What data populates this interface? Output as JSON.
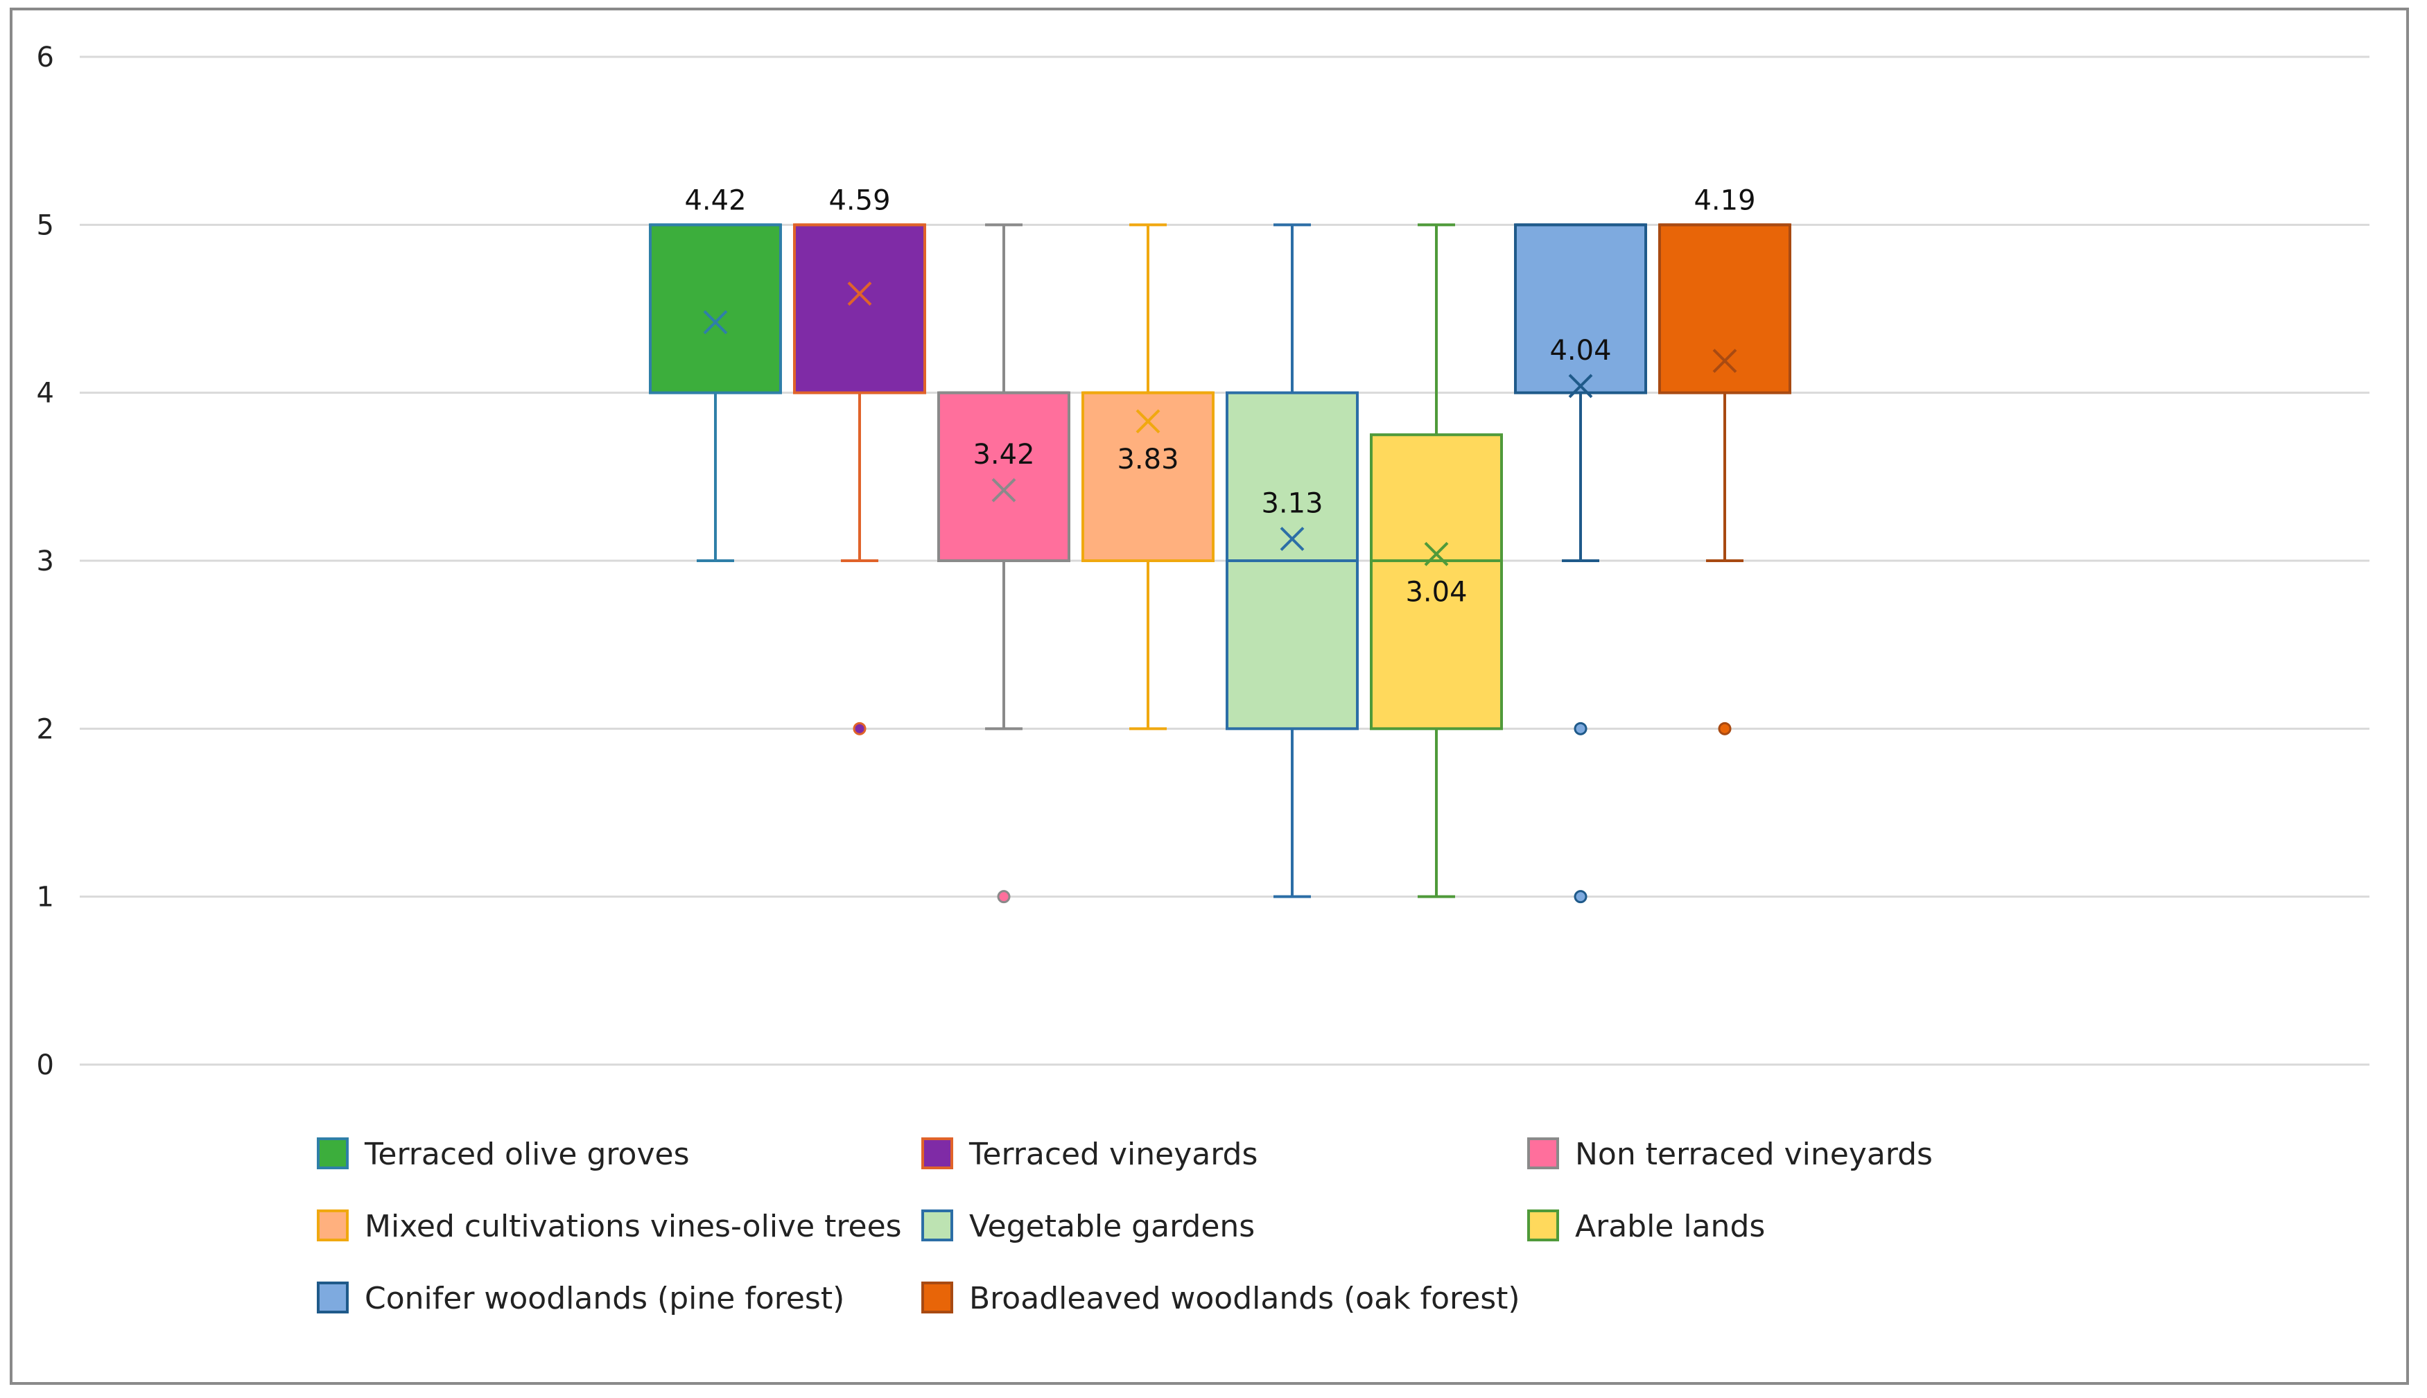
{
  "chart_data": {
    "type": "boxplot",
    "title": "",
    "xlabel": "",
    "ylabel": "",
    "ylim": [
      0,
      6
    ],
    "yticks": [
      "0",
      "1",
      "2",
      "3",
      "4",
      "5",
      "6"
    ],
    "grid": true,
    "legend_position": "bottom",
    "series": [
      {
        "name": "Terraced olive groves",
        "fill": "#3cae3c",
        "stroke": "#2f7fa8",
        "min": 3,
        "q1": 4,
        "median": 5,
        "q3": 5,
        "max": 5,
        "mean": 4.42,
        "mean_label": "4.42",
        "label_pos": "top",
        "outliers": []
      },
      {
        "name": "Terraced vineyards",
        "fill": "#7f2ba6",
        "stroke": "#e0632a",
        "min": 3,
        "q1": 4,
        "median": 5,
        "q3": 5,
        "max": 5,
        "mean": 4.59,
        "mean_label": "4.59",
        "label_pos": "top",
        "outliers": [
          2
        ]
      },
      {
        "name": "Non terraced vineyards",
        "fill": "#ff6f9c",
        "stroke": "#8a8a8a",
        "min": 2,
        "q1": 3,
        "median": 4,
        "q3": 4,
        "max": 5,
        "mean": 3.42,
        "mean_label": "3.42",
        "label_pos": "inside-above",
        "outliers": [
          1
        ]
      },
      {
        "name": "Mixed cultivations vines-olive trees",
        "fill": "#ffb07e",
        "stroke": "#f0a810",
        "min": 2,
        "q1": 3,
        "median": 4,
        "q3": 4,
        "max": 5,
        "mean": 3.83,
        "mean_label": "3.83",
        "label_pos": "inside-below",
        "outliers": []
      },
      {
        "name": "Vegetable gardens",
        "fill": "#bde3b2",
        "stroke": "#2c6ea6",
        "min": 1,
        "q1": 2,
        "median": 3,
        "q3": 4,
        "max": 5,
        "mean": 3.13,
        "mean_label": "3.13",
        "label_pos": "inside-above",
        "outliers": []
      },
      {
        "name": "Arable lands",
        "fill": "#ffd95c",
        "stroke": "#4f9a3a",
        "min": 1,
        "q1": 2,
        "median": 3,
        "q3": 3.75,
        "max": 5,
        "mean": 3.04,
        "mean_label": "3.04",
        "label_pos": "inside-below",
        "outliers": []
      },
      {
        "name": "Conifer woodlands (pine forest)",
        "fill": "#7eaadf",
        "stroke": "#1f5a8a",
        "min": 3,
        "q1": 4,
        "median": 5,
        "q3": 5,
        "max": 5,
        "mean": 4.04,
        "mean_label": "4.04",
        "label_pos": "inside-above",
        "outliers": [
          2,
          1
        ]
      },
      {
        "name": "Broadleaved woodlands (oak forest)",
        "fill": "#e86508",
        "stroke": "#a84a12",
        "min": 3,
        "q1": 4,
        "median": 5,
        "q3": 5,
        "max": 5,
        "mean": 4.19,
        "mean_label": "4.19",
        "label_pos": "top",
        "outliers": [
          2
        ]
      }
    ]
  }
}
